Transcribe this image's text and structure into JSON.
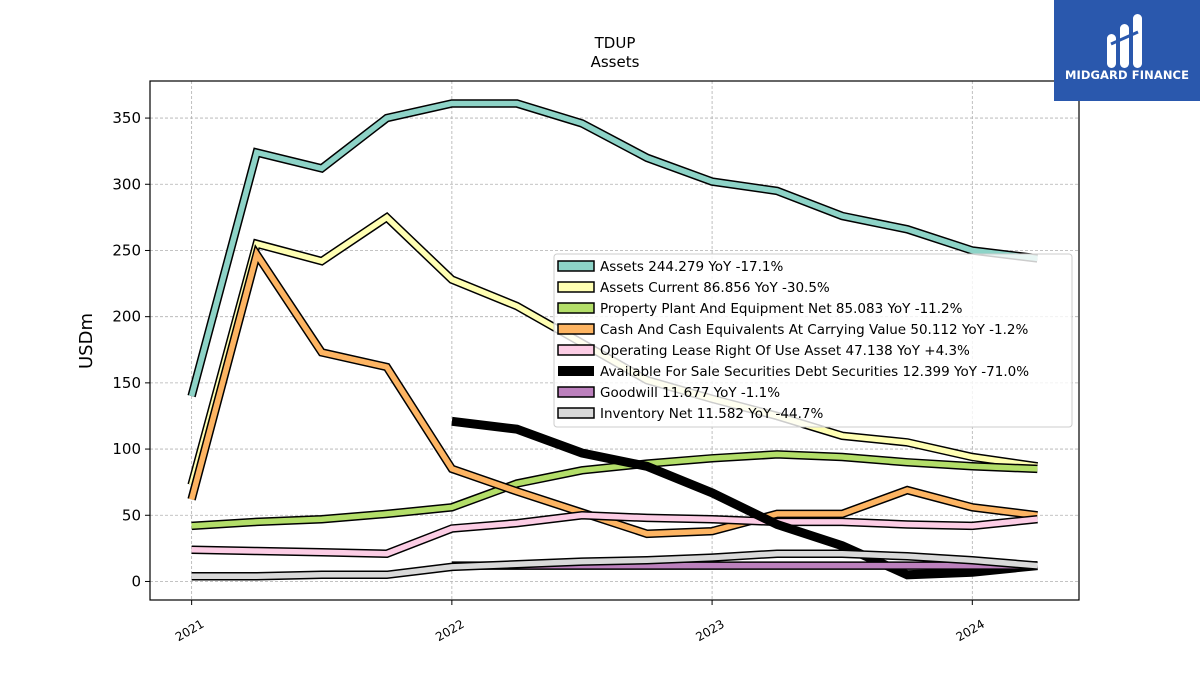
{
  "chart_data": {
    "type": "line",
    "title": "TDUP",
    "subtitle": "Assets",
    "ylabel": "USDm",
    "xlabel": "",
    "ylim": [
      -14,
      378
    ],
    "xlim": [
      2020.84,
      2024.41
    ],
    "x_ticks": [
      {
        "value": 2021,
        "label": "2021"
      },
      {
        "value": 2022,
        "label": "2022"
      },
      {
        "value": 2023,
        "label": "2023"
      },
      {
        "value": 2024,
        "label": "2024"
      }
    ],
    "y_ticks": [
      0,
      50,
      100,
      150,
      200,
      250,
      300,
      350
    ],
    "grid": true,
    "legend_position": "center-right",
    "series": [
      {
        "name": "Assets  244.279 YoY -17.1%",
        "color": "#8dd3c7",
        "style": "outlined",
        "x": [
          2021.0,
          2021.25,
          2021.5,
          2021.75,
          2022.0,
          2022.25,
          2022.5,
          2022.75,
          2023.0,
          2023.25,
          2023.5,
          2023.75,
          2024.0,
          2024.25
        ],
        "y": [
          140,
          324,
          312,
          350,
          361,
          361,
          346,
          320,
          302,
          295,
          276,
          266,
          250,
          244
        ]
      },
      {
        "name": "Assets Current  86.856 YoY -30.5%",
        "color": "#ffffb3",
        "style": "outlined",
        "x": [
          2021.0,
          2021.25,
          2021.5,
          2021.75,
          2022.0,
          2022.25,
          2022.5,
          2022.75,
          2023.0,
          2023.25,
          2023.5,
          2023.75,
          2024.0,
          2024.25
        ],
        "y": [
          73,
          255,
          242,
          275,
          228,
          208,
          180,
          152,
          138,
          125,
          110,
          105,
          94,
          87
        ]
      },
      {
        "name": "Property Plant And Equipment Net  85.083 YoY -11.2%",
        "color": "#b3de69",
        "style": "outlined",
        "x": [
          2021.0,
          2021.25,
          2021.5,
          2021.75,
          2022.0,
          2022.25,
          2022.5,
          2022.75,
          2023.0,
          2023.25,
          2023.5,
          2023.75,
          2024.0,
          2024.25
        ],
        "y": [
          42,
          45,
          47,
          51,
          56,
          74,
          84,
          89,
          93,
          96,
          94,
          90,
          87,
          85
        ]
      },
      {
        "name": "Cash And Cash Equivalents At Carrying Value  50.112 YoY -1.2%",
        "color": "#fdb462",
        "style": "outlined",
        "x": [
          2021.0,
          2021.25,
          2021.5,
          2021.75,
          2022.0,
          2022.25,
          2022.5,
          2022.75,
          2023.0,
          2023.25,
          2023.5,
          2023.75,
          2024.0,
          2024.25
        ],
        "y": [
          62,
          247,
          173,
          162,
          85,
          68,
          52,
          36,
          38,
          51,
          51,
          69,
          56,
          50
        ]
      },
      {
        "name": "Operating Lease Right Of Use Asset  47.138 YoY +4.3%",
        "color": "#fccde5",
        "style": "outlined",
        "x": [
          2021.0,
          2021.25,
          2021.5,
          2021.75,
          2022.0,
          2022.25,
          2022.5,
          2022.75,
          2023.0,
          2023.25,
          2023.5,
          2023.75,
          2024.0,
          2024.25
        ],
        "y": [
          24,
          23,
          22,
          21,
          40,
          44,
          50,
          48,
          47,
          45,
          45,
          43,
          42,
          47
        ]
      },
      {
        "name": "Available For Sale Securities Debt Securities  12.399 YoY -71.0%",
        "color": "#000000",
        "style": "solid",
        "x": [
          2022.0,
          2022.25,
          2022.5,
          2022.75,
          2023.0,
          2023.25,
          2023.5,
          2023.75,
          2024.0,
          2024.25
        ],
        "y": [
          121,
          115,
          97,
          87,
          67,
          43,
          27,
          5,
          7,
          12
        ]
      },
      {
        "name": "Goodwill  11.677 YoY -1.1%",
        "color": "#bc80bd",
        "style": "outlined",
        "x": [
          2022.0,
          2022.25,
          2022.5,
          2022.75,
          2023.0,
          2023.25,
          2023.5,
          2023.75,
          2024.0,
          2024.25
        ],
        "y": [
          12,
          12,
          12,
          12,
          12,
          12,
          12,
          12,
          12,
          12
        ]
      },
      {
        "name": "Inventory Net  11.582 YoY -44.7%",
        "color": "#d9d9d9",
        "style": "outlined",
        "x": [
          2021.0,
          2021.25,
          2021.5,
          2021.75,
          2022.0,
          2022.25,
          2022.5,
          2022.75,
          2023.0,
          2023.25,
          2023.5,
          2023.75,
          2024.0,
          2024.25
        ],
        "y": [
          4,
          4,
          5,
          5,
          11,
          13,
          15,
          16,
          18,
          21,
          21,
          19,
          16,
          12
        ]
      }
    ]
  },
  "logo": {
    "name": "MIDGARD FINANCE",
    "background": "#2a58ad"
  }
}
